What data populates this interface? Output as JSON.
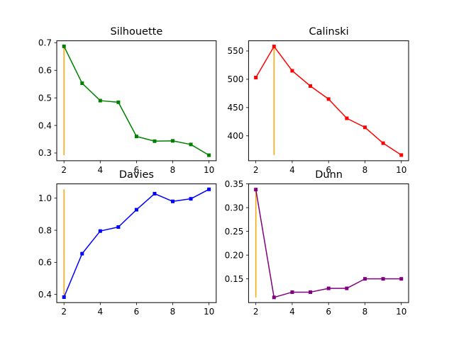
{
  "chart_data": [
    {
      "type": "line",
      "title": "Silhouette",
      "x": [
        2,
        3,
        4,
        5,
        6,
        7,
        8,
        9,
        10
      ],
      "series": [
        {
          "values": [
            0.687,
            0.553,
            0.49,
            0.484,
            0.36,
            0.343,
            0.344,
            0.331,
            0.292
          ],
          "color": "#008000"
        }
      ],
      "highlight": {
        "x": 2,
        "from": 0.292,
        "to": 0.687,
        "color": "#ffa500"
      },
      "xlim": [
        1.6,
        10.4
      ],
      "ylim": [
        0.272,
        0.707
      ],
      "xticks": [
        2,
        4,
        6,
        8,
        10
      ],
      "yticks": [
        0.3,
        0.4,
        0.5,
        0.6,
        0.7
      ],
      "xtick_labels": [
        "2",
        "4",
        "6",
        "8",
        "10"
      ],
      "ytick_labels": [
        "0.3",
        "0.4",
        "0.5",
        "0.6",
        "0.7"
      ],
      "grid": false
    },
    {
      "type": "line",
      "title": "Calinski",
      "x": [
        2,
        3,
        4,
        5,
        6,
        7,
        8,
        9,
        10
      ],
      "series": [
        {
          "values": [
            503,
            558,
            515,
            488,
            465,
            431,
            415,
            387,
            366
          ],
          "color": "#ff0000"
        }
      ],
      "highlight": {
        "x": 3,
        "from": 366,
        "to": 558,
        "color": "#ffa500"
      },
      "xlim": [
        1.6,
        10.4
      ],
      "ylim": [
        356,
        568
      ],
      "xticks": [
        2,
        4,
        6,
        8,
        10
      ],
      "yticks": [
        400,
        450,
        500,
        550
      ],
      "xtick_labels": [
        "2",
        "4",
        "6",
        "8",
        "10"
      ],
      "ytick_labels": [
        "400",
        "450",
        "500",
        "550"
      ],
      "grid": false
    },
    {
      "type": "line",
      "title": "Davies",
      "x": [
        2,
        3,
        4,
        5,
        6,
        7,
        8,
        9,
        10
      ],
      "series": [
        {
          "values": [
            0.383,
            0.654,
            0.795,
            0.82,
            0.928,
            1.028,
            0.98,
            0.996,
            1.055
          ],
          "color": "#0000ff"
        }
      ],
      "highlight": {
        "x": 2,
        "from": 0.383,
        "to": 1.055,
        "color": "#ffa500"
      },
      "xlim": [
        1.6,
        10.4
      ],
      "ylim": [
        0.349,
        1.089
      ],
      "xticks": [
        2,
        4,
        6,
        8,
        10
      ],
      "yticks": [
        0.4,
        0.6,
        0.8,
        1.0
      ],
      "xtick_labels": [
        "2",
        "4",
        "6",
        "8",
        "10"
      ],
      "ytick_labels": [
        "0.4",
        "0.6",
        "0.8",
        "1.0"
      ],
      "grid": false
    },
    {
      "type": "line",
      "title": "Dunn",
      "x": [
        2,
        3,
        4,
        5,
        6,
        7,
        8,
        9,
        10
      ],
      "series": [
        {
          "values": [
            0.338,
            0.111,
            0.122,
            0.122,
            0.13,
            0.13,
            0.15,
            0.15,
            0.15
          ],
          "color": "#800080"
        }
      ],
      "highlight": {
        "x": 2,
        "from": 0.111,
        "to": 0.338,
        "color": "#ffa500"
      },
      "xlim": [
        1.6,
        10.4
      ],
      "ylim": [
        0.1,
        0.35
      ],
      "xticks": [
        2,
        4,
        6,
        8,
        10
      ],
      "yticks": [
        0.15,
        0.2,
        0.25,
        0.3,
        0.35
      ],
      "xtick_labels": [
        "2",
        "4",
        "6",
        "8",
        "10"
      ],
      "ytick_labels": [
        "0.15",
        "0.20",
        "0.25",
        "0.30",
        "0.35"
      ],
      "grid": false
    }
  ]
}
